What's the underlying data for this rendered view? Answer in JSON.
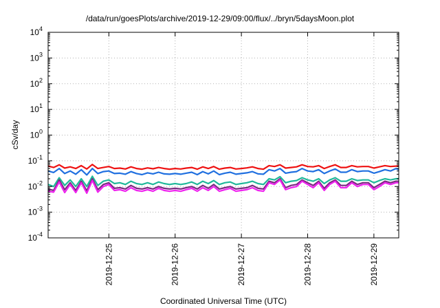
{
  "chart_data": {
    "type": "line",
    "title": "/data/run/goesPlots/archive/2019-12-29/09:00/flux/../bryn/5daysMoon.plot",
    "xlabel": "Coordinated Universal Time (UTC)",
    "ylabel": "cSv/day",
    "yscale": "log",
    "ylim": [
      0.0001,
      10000
    ],
    "xlim": [
      "2019-12-24T02:00",
      "2019-12-29T09:00"
    ],
    "grid": true,
    "y_ticks": [
      {
        "base": "10",
        "exp": "-4"
      },
      {
        "base": "10",
        "exp": "-3"
      },
      {
        "base": "10",
        "exp": "-2"
      },
      {
        "base": "10",
        "exp": "-1"
      },
      {
        "base": "10",
        "exp": "0"
      },
      {
        "base": "10",
        "exp": "1"
      },
      {
        "base": "10",
        "exp": "2"
      },
      {
        "base": "10",
        "exp": "3"
      },
      {
        "base": "10",
        "exp": "4"
      }
    ],
    "x_ticks": [
      "2019-12-25",
      "2019-12-26",
      "2019-12-27",
      "2019-12-28",
      "2019-12-29"
    ],
    "x": [
      "2019-12-24T02:00",
      "2019-12-24T04:00",
      "2019-12-24T06:00",
      "2019-12-24T08:00",
      "2019-12-24T10:00",
      "2019-12-24T12:00",
      "2019-12-24T14:00",
      "2019-12-24T16:00",
      "2019-12-24T18:00",
      "2019-12-24T20:00",
      "2019-12-24T22:00",
      "2019-12-25T00:00",
      "2019-12-25T02:00",
      "2019-12-25T04:00",
      "2019-12-25T06:00",
      "2019-12-25T08:00",
      "2019-12-25T10:00",
      "2019-12-25T12:00",
      "2019-12-25T14:00",
      "2019-12-25T16:00",
      "2019-12-25T18:00",
      "2019-12-25T20:00",
      "2019-12-25T22:00",
      "2019-12-26T00:00",
      "2019-12-26T02:00",
      "2019-12-26T04:00",
      "2019-12-26T06:00",
      "2019-12-26T08:00",
      "2019-12-26T10:00",
      "2019-12-26T12:00",
      "2019-12-26T14:00",
      "2019-12-26T16:00",
      "2019-12-26T18:00",
      "2019-12-26T20:00",
      "2019-12-26T22:00",
      "2019-12-27T00:00",
      "2019-12-27T02:00",
      "2019-12-27T04:00",
      "2019-12-27T06:00",
      "2019-12-27T08:00",
      "2019-12-27T10:00",
      "2019-12-27T12:00",
      "2019-12-27T14:00",
      "2019-12-27T16:00",
      "2019-12-27T18:00",
      "2019-12-27T20:00",
      "2019-12-27T22:00",
      "2019-12-28T00:00",
      "2019-12-28T02:00",
      "2019-12-28T04:00",
      "2019-12-28T06:00",
      "2019-12-28T08:00",
      "2019-12-28T10:00",
      "2019-12-28T12:00",
      "2019-12-28T14:00",
      "2019-12-28T16:00",
      "2019-12-28T18:00",
      "2019-12-28T20:00",
      "2019-12-28T22:00",
      "2019-12-29T00:00",
      "2019-12-29T02:00",
      "2019-12-29T04:00",
      "2019-12-29T06:00",
      "2019-12-29T08:00",
      "2019-12-29T09:00"
    ],
    "series": [
      {
        "color": "#ee1111",
        "values": [
          0.062,
          0.055,
          0.07,
          0.052,
          0.058,
          0.05,
          0.065,
          0.048,
          0.072,
          0.05,
          0.055,
          0.06,
          0.05,
          0.052,
          0.048,
          0.058,
          0.05,
          0.047,
          0.053,
          0.049,
          0.055,
          0.05,
          0.047,
          0.05,
          0.048,
          0.052,
          0.055,
          0.047,
          0.058,
          0.05,
          0.06,
          0.047,
          0.052,
          0.055,
          0.048,
          0.05,
          0.053,
          0.058,
          0.05,
          0.047,
          0.065,
          0.06,
          0.07,
          0.052,
          0.055,
          0.058,
          0.07,
          0.06,
          0.058,
          0.065,
          0.05,
          0.06,
          0.07,
          0.055,
          0.055,
          0.065,
          0.058,
          0.06,
          0.06,
          0.052,
          0.058,
          0.065,
          0.06,
          0.062,
          0.062
        ]
      },
      {
        "color": "#1f6fe0",
        "values": [
          0.04,
          0.035,
          0.05,
          0.032,
          0.04,
          0.03,
          0.045,
          0.028,
          0.05,
          0.032,
          0.038,
          0.04,
          0.032,
          0.033,
          0.03,
          0.038,
          0.032,
          0.029,
          0.034,
          0.031,
          0.036,
          0.031,
          0.03,
          0.032,
          0.03,
          0.033,
          0.036,
          0.029,
          0.038,
          0.031,
          0.04,
          0.029,
          0.033,
          0.036,
          0.03,
          0.032,
          0.034,
          0.038,
          0.031,
          0.03,
          0.045,
          0.04,
          0.05,
          0.033,
          0.036,
          0.038,
          0.05,
          0.04,
          0.038,
          0.045,
          0.032,
          0.04,
          0.048,
          0.036,
          0.036,
          0.045,
          0.038,
          0.04,
          0.04,
          0.033,
          0.038,
          0.045,
          0.04,
          0.05,
          0.045
        ]
      },
      {
        "color": "#20b89a",
        "values": [
          0.012,
          0.01,
          0.022,
          0.011,
          0.018,
          0.01,
          0.02,
          0.01,
          0.025,
          0.011,
          0.016,
          0.018,
          0.013,
          0.014,
          0.012,
          0.016,
          0.013,
          0.012,
          0.014,
          0.012,
          0.015,
          0.013,
          0.012,
          0.013,
          0.012,
          0.013,
          0.015,
          0.012,
          0.016,
          0.013,
          0.017,
          0.012,
          0.014,
          0.015,
          0.012,
          0.013,
          0.014,
          0.016,
          0.013,
          0.012,
          0.02,
          0.018,
          0.024,
          0.014,
          0.016,
          0.017,
          0.022,
          0.018,
          0.016,
          0.02,
          0.013,
          0.018,
          0.022,
          0.016,
          0.016,
          0.02,
          0.017,
          0.018,
          0.018,
          0.014,
          0.017,
          0.02,
          0.018,
          0.02,
          0.02
        ]
      },
      {
        "color": "#7a2a80",
        "values": [
          0.008,
          0.007,
          0.018,
          0.0075,
          0.014,
          0.007,
          0.016,
          0.0068,
          0.02,
          0.0075,
          0.012,
          0.014,
          0.0085,
          0.009,
          0.008,
          0.011,
          0.0085,
          0.008,
          0.009,
          0.008,
          0.01,
          0.0085,
          0.008,
          0.0085,
          0.008,
          0.009,
          0.01,
          0.008,
          0.011,
          0.0085,
          0.012,
          0.008,
          0.009,
          0.01,
          0.008,
          0.0085,
          0.009,
          0.011,
          0.0085,
          0.008,
          0.016,
          0.014,
          0.02,
          0.009,
          0.011,
          0.012,
          0.018,
          0.014,
          0.011,
          0.016,
          0.0085,
          0.014,
          0.018,
          0.011,
          0.011,
          0.016,
          0.012,
          0.014,
          0.014,
          0.009,
          0.012,
          0.016,
          0.014,
          0.016,
          0.016
        ]
      },
      {
        "color": "#ee22ee",
        "values": [
          0.0065,
          0.006,
          0.015,
          0.0058,
          0.012,
          0.0058,
          0.014,
          0.0055,
          0.017,
          0.006,
          0.01,
          0.012,
          0.007,
          0.0075,
          0.0065,
          0.009,
          0.007,
          0.0065,
          0.0075,
          0.0065,
          0.0085,
          0.007,
          0.0065,
          0.007,
          0.0065,
          0.0075,
          0.0085,
          0.0065,
          0.009,
          0.007,
          0.01,
          0.0065,
          0.0075,
          0.0085,
          0.0065,
          0.007,
          0.0075,
          0.009,
          0.007,
          0.0065,
          0.014,
          0.012,
          0.018,
          0.0075,
          0.009,
          0.01,
          0.016,
          0.012,
          0.009,
          0.014,
          0.007,
          0.012,
          0.016,
          0.009,
          0.009,
          0.014,
          0.01,
          0.012,
          0.012,
          0.0075,
          0.01,
          0.014,
          0.012,
          0.014,
          0.014
        ]
      }
    ]
  }
}
